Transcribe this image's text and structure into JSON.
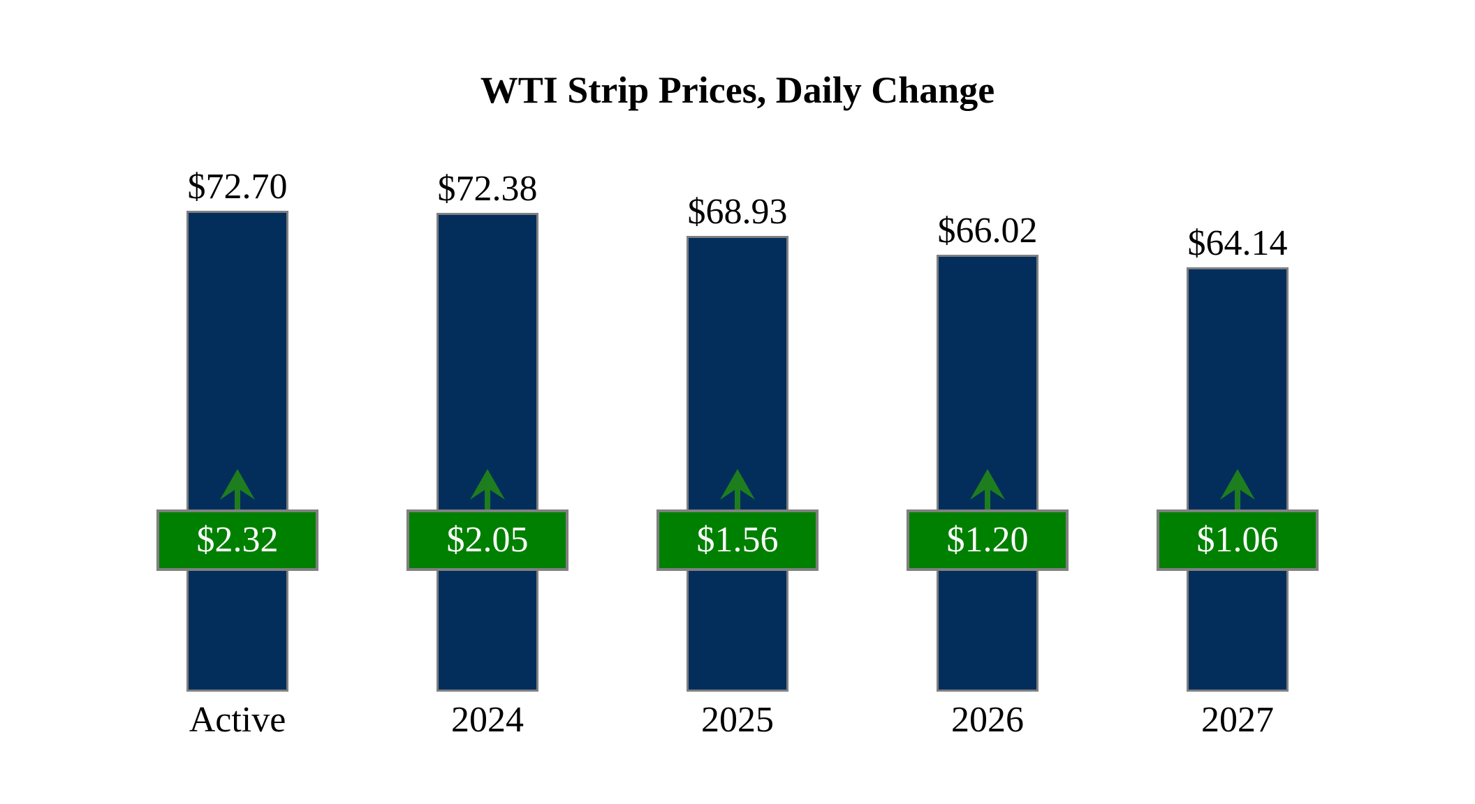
{
  "chart_data": {
    "type": "bar",
    "title": "WTI Strip Prices, Daily Change",
    "categories": [
      "Active",
      "2024",
      "2025",
      "2026",
      "2027"
    ],
    "series": [
      {
        "name": "Strip Price",
        "values": [
          72.7,
          72.38,
          68.93,
          66.02,
          64.14
        ],
        "labels": [
          "$72.70",
          "$72.38",
          "$68.93",
          "$66.02",
          "$64.14"
        ]
      },
      {
        "name": "Daily Change",
        "values": [
          2.32,
          2.05,
          1.56,
          1.2,
          1.06
        ],
        "labels": [
          "$2.32",
          "$2.05",
          "$1.56",
          "$1.20",
          "$1.06"
        ],
        "direction": "up"
      }
    ],
    "ylim": [
      0,
      76
    ],
    "grid": false,
    "legend": false,
    "axes_shown": false,
    "colors": {
      "bar_fill": "#032E5C",
      "bar_border": "#808080",
      "badge_fill": "#008000",
      "badge_border": "#808080",
      "badge_text": "#FFFFFF",
      "arrow": "#1E7E1E",
      "text": "#000000",
      "background": "#FFFFFF"
    }
  }
}
